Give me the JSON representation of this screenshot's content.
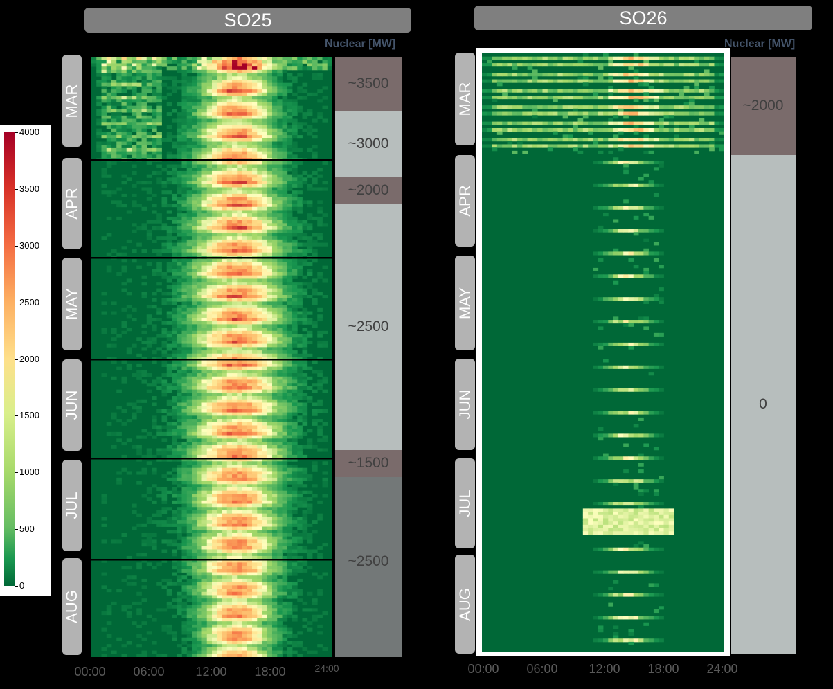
{
  "chart_data": [
    {
      "type": "heatmap",
      "title": "SO25",
      "x_ticks": [
        "00:00",
        "06:00",
        "12:00",
        "18:00",
        "24:00"
      ],
      "y_groups": [
        "MAR",
        "APR",
        "MAY",
        "JUN",
        "JUL",
        "AUG"
      ],
      "nuclear_header": "Nuclear [MW]",
      "nuclear_segments": [
        {
          "label": "~3500",
          "color": "#7a6b6b",
          "from_frac": 0.0,
          "to_frac": 0.09
        },
        {
          "label": "~3000",
          "color": "#b7bebd",
          "from_frac": 0.09,
          "to_frac": 0.2
        },
        {
          "label": "~2000",
          "color": "#7a6b6b",
          "from_frac": 0.2,
          "to_frac": 0.245
        },
        {
          "label": "~2500",
          "color": "#b7bebd",
          "from_frac": 0.245,
          "to_frac": 0.655
        },
        {
          "label": "~1500",
          "color": "#7a6b6b",
          "from_frac": 0.655,
          "to_frac": 0.7
        },
        {
          "label": "~2500",
          "color": "#737878",
          "from_frac": 0.7,
          "to_frac": 1.0
        }
      ],
      "value_range": [
        0,
        4000
      ]
    },
    {
      "type": "heatmap",
      "title": "SO26",
      "x_ticks": [
        "00:00",
        "06:00",
        "12:00",
        "18:00",
        "24:00"
      ],
      "y_groups": [
        "MAR",
        "APR",
        "MAY",
        "JUN",
        "JUL",
        "AUG"
      ],
      "nuclear_header": "Nuclear [MW]",
      "nuclear_segments": [
        {
          "label": "~2000",
          "color": "#7a6b6b",
          "from_frac": 0.0,
          "to_frac": 0.165
        },
        {
          "label": "0",
          "color": "#b7bebd",
          "from_frac": 0.165,
          "to_frac": 1.0
        }
      ],
      "value_range": [
        0,
        4000
      ]
    }
  ],
  "colorbar": {
    "ticks": [
      "4000",
      "3500",
      "3000",
      "2500",
      "2000",
      "1500",
      "1000",
      "500",
      "0"
    ],
    "min": 0,
    "max": 4000
  }
}
